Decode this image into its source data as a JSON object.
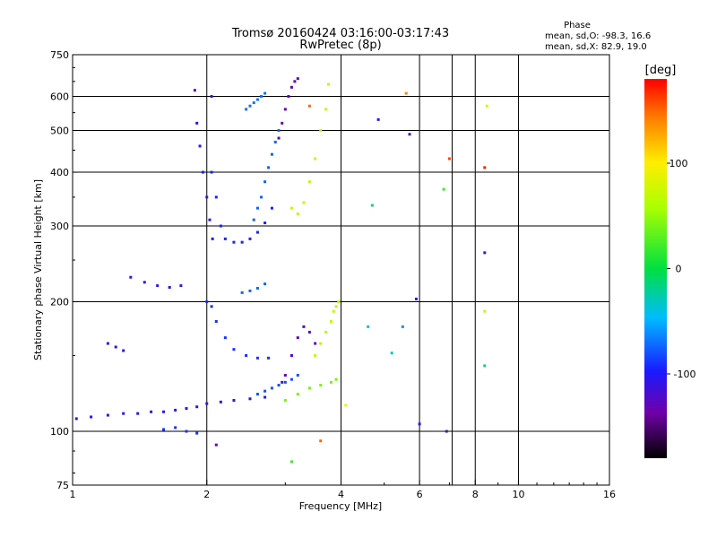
{
  "header": {
    "title_line1": "Tromsø 20160424 03:16:00-03:17:43",
    "title_line2": "RwPretec (8p)"
  },
  "phase_box": {
    "heading": "Phase",
    "line_o": "mean, sd,O: -98.3, 16.6",
    "line_x": "mean, sd,X:  82.9, 19.0"
  },
  "colorbar": {
    "label": "deg",
    "ticks": [
      {
        "value": 100,
        "label": "100"
      },
      {
        "value": 0,
        "label": "0"
      },
      {
        "value": -100,
        "label": "-100"
      }
    ],
    "range": [
      -180,
      180
    ]
  },
  "chart_data": {
    "type": "scatter",
    "xlabel": "Frequency [MHz]",
    "ylabel": "Stationary phase Virtual Height [km]",
    "xscale": "log",
    "yscale": "log",
    "xlim": [
      1,
      16
    ],
    "ylim": [
      75,
      750
    ],
    "x_ticks": [
      1,
      2,
      4,
      6,
      8,
      10,
      16
    ],
    "y_ticks": [
      75,
      100,
      200,
      300,
      400,
      500,
      600,
      750
    ],
    "x_grid": [
      2,
      4,
      6,
      7.1,
      8,
      10
    ],
    "y_grid": [
      100,
      200,
      300,
      400,
      500,
      600
    ],
    "color_encodes": "phase [deg]",
    "traces": [
      {
        "phase": -100,
        "x": [
          1.02,
          1.1,
          1.2,
          1.3,
          1.4,
          1.5,
          1.6,
          1.7,
          1.8,
          1.9,
          2.0,
          2.15,
          2.3,
          2.5,
          2.7
        ],
        "y": [
          107,
          108,
          109,
          110,
          110,
          111,
          111,
          112,
          113,
          114,
          116,
          117,
          118,
          119,
          120
        ]
      },
      {
        "phase": -110,
        "x": [
          1.35,
          1.45,
          1.55,
          1.65,
          1.75
        ],
        "y": [
          228,
          222,
          218,
          216,
          218
        ]
      },
      {
        "phase": -105,
        "x": [
          1.2,
          1.25,
          1.3
        ],
        "y": [
          160,
          157,
          154
        ]
      },
      {
        "phase": -100,
        "x": [
          1.9,
          1.93,
          1.96,
          2.0,
          2.03,
          2.06
        ],
        "y": [
          520,
          460,
          400,
          350,
          310,
          280
        ]
      },
      {
        "phase": -95,
        "x": [
          2.05,
          2.1,
          2.15,
          2.2,
          2.3,
          2.4,
          2.5,
          2.6,
          2.7,
          2.8
        ],
        "y": [
          400,
          350,
          300,
          280,
          275,
          275,
          280,
          290,
          305,
          330
        ]
      },
      {
        "phase": -90,
        "x": [
          2.0,
          2.05,
          2.1,
          2.2,
          2.3,
          2.45,
          2.6,
          2.75
        ],
        "y": [
          200,
          195,
          180,
          165,
          155,
          150,
          148,
          148
        ]
      },
      {
        "phase": -75,
        "x": [
          2.55,
          2.6,
          2.65,
          2.7,
          2.75,
          2.8,
          2.85,
          2.9
        ],
        "y": [
          310,
          330,
          350,
          380,
          410,
          440,
          470,
          500
        ]
      },
      {
        "phase": -70,
        "x": [
          2.45,
          2.5,
          2.55,
          2.6,
          2.65,
          2.7
        ],
        "y": [
          560,
          570,
          580,
          590,
          600,
          610
        ]
      },
      {
        "phase": -130,
        "x": [
          2.9,
          2.95,
          3.0,
          3.05,
          3.1,
          3.15,
          3.2
        ],
        "y": [
          480,
          520,
          560,
          600,
          630,
          650,
          660
        ]
      },
      {
        "phase": -125,
        "x": [
          2.95,
          3.0,
          3.1,
          3.2,
          3.3,
          3.4,
          3.5
        ],
        "y": [
          130,
          135,
          150,
          165,
          175,
          170,
          160
        ]
      },
      {
        "phase": -80,
        "x": [
          2.6,
          2.7,
          2.8,
          2.9,
          3.0,
          3.1,
          3.2
        ],
        "y": [
          122,
          124,
          126,
          128,
          130,
          132,
          135
        ]
      },
      {
        "phase": -75,
        "x": [
          2.4,
          2.5,
          2.6,
          2.7
        ],
        "y": [
          210,
          212,
          215,
          220
        ]
      },
      {
        "phase": 70,
        "x": [
          3.1,
          3.2,
          3.3,
          3.4,
          3.5,
          3.6,
          3.7,
          3.75
        ],
        "y": [
          330,
          320,
          340,
          380,
          430,
          500,
          560,
          640
        ]
      },
      {
        "phase": 40,
        "x": [
          3.0,
          3.2,
          3.4,
          3.6,
          3.8,
          3.9
        ],
        "y": [
          118,
          122,
          126,
          128,
          130,
          132
        ]
      },
      {
        "phase": 65,
        "x": [
          3.5,
          3.6,
          3.7,
          3.8,
          3.85,
          3.9,
          3.95
        ],
        "y": [
          150,
          160,
          170,
          180,
          190,
          195,
          200
        ]
      },
      {
        "phase": -90,
        "x": [
          1.6,
          1.7,
          1.8,
          1.9
        ],
        "y": [
          101,
          102,
          100,
          99
        ]
      }
    ],
    "sparse_points": [
      {
        "x": 1.88,
        "y": 620,
        "phase": -130
      },
      {
        "x": 2.05,
        "y": 600,
        "phase": -110
      },
      {
        "x": 3.4,
        "y": 570,
        "phase": 150
      },
      {
        "x": 4.85,
        "y": 530,
        "phase": -100
      },
      {
        "x": 5.6,
        "y": 610,
        "phase": 140
      },
      {
        "x": 5.7,
        "y": 490,
        "phase": -120
      },
      {
        "x": 7.0,
        "y": 430,
        "phase": 160
      },
      {
        "x": 6.8,
        "y": 365,
        "phase": 20
      },
      {
        "x": 8.4,
        "y": 410,
        "phase": 170
      },
      {
        "x": 8.5,
        "y": 570,
        "phase": 80
      },
      {
        "x": 8.4,
        "y": 260,
        "phase": -110
      },
      {
        "x": 5.9,
        "y": 203,
        "phase": -110
      },
      {
        "x": 8.4,
        "y": 190,
        "phase": 70
      },
      {
        "x": 8.4,
        "y": 142,
        "phase": -20
      },
      {
        "x": 4.6,
        "y": 175,
        "phase": -40
      },
      {
        "x": 5.2,
        "y": 152,
        "phase": -30
      },
      {
        "x": 6.0,
        "y": 104,
        "phase": -110
      },
      {
        "x": 6.9,
        "y": 100,
        "phase": -120
      },
      {
        "x": 4.7,
        "y": 335,
        "phase": -20
      },
      {
        "x": 3.6,
        "y": 95,
        "phase": 150
      },
      {
        "x": 3.1,
        "y": 85,
        "phase": 20
      },
      {
        "x": 2.1,
        "y": 93,
        "phase": -130
      },
      {
        "x": 4.1,
        "y": 115,
        "phase": 90
      },
      {
        "x": 5.5,
        "y": 175,
        "phase": -60
      }
    ]
  }
}
